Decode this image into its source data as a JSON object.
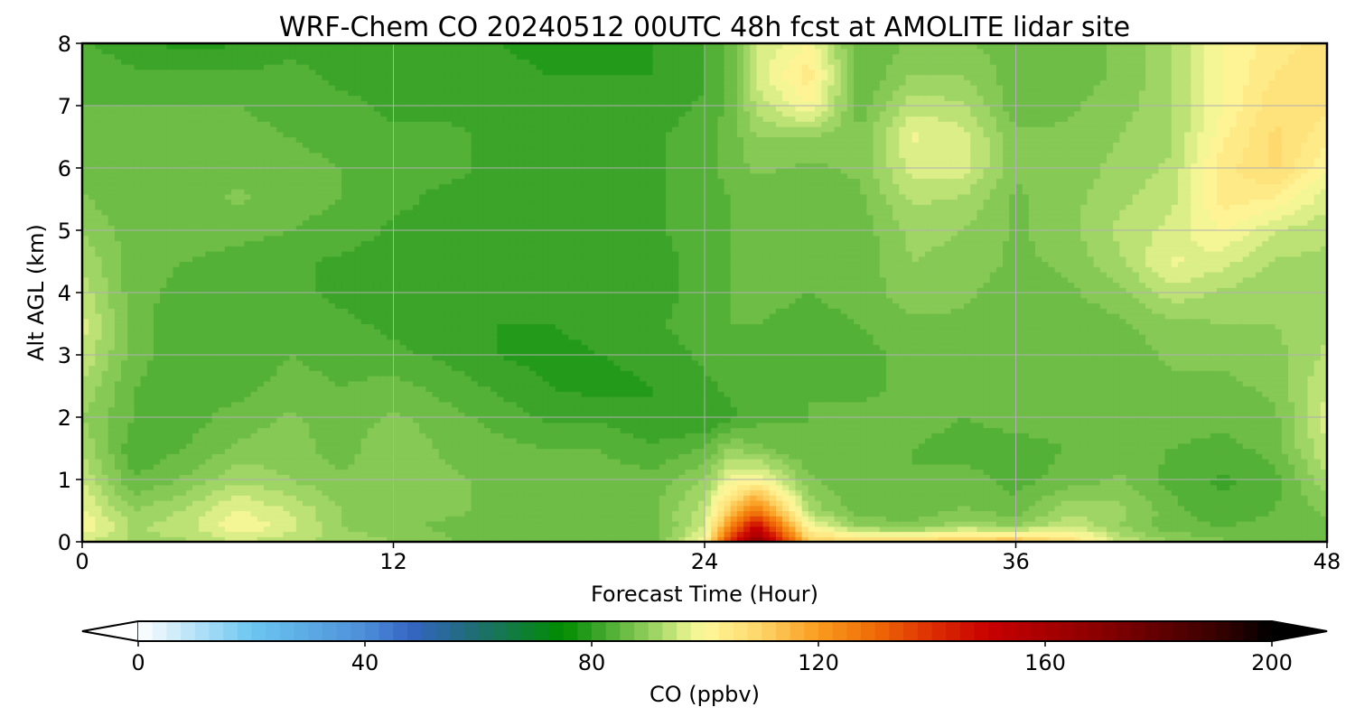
{
  "chart_data": {
    "type": "heatmap",
    "title": "WRF-Chem CO  20240512 00UTC 48h fcst at AMOLITE lidar site",
    "xlabel": "Forecast Time (Hour)",
    "ylabel": "Alt AGL (km)",
    "xlim": [
      0,
      48
    ],
    "ylim": [
      0,
      8
    ],
    "x_ticks": [
      0,
      12,
      24,
      36,
      48
    ],
    "y_ticks": [
      0,
      1,
      2,
      3,
      4,
      5,
      6,
      7,
      8
    ],
    "grid": true,
    "x": [
      0,
      2,
      4,
      6,
      8,
      10,
      12,
      14,
      16,
      18,
      20,
      22,
      24,
      25,
      26,
      28,
      30,
      32,
      34,
      36,
      38,
      40,
      42,
      44,
      46,
      48
    ],
    "y": [
      0,
      0.25,
      0.5,
      1,
      1.5,
      2,
      2.5,
      3,
      3.5,
      4,
      4.5,
      5,
      5.5,
      6,
      6.5,
      7,
      7.5,
      8
    ],
    "values": [
      [
        95,
        92,
        92,
        95,
        93,
        92,
        90,
        88,
        86,
        85,
        85,
        86,
        100,
        140,
        170,
        112,
        108,
        110,
        112,
        115,
        108,
        95,
        90,
        88,
        87,
        86
      ],
      [
        100,
        92,
        94,
        100,
        96,
        90,
        88,
        87,
        86,
        86,
        85,
        86,
        95,
        125,
        150,
        100,
        90,
        88,
        92,
        90,
        95,
        90,
        86,
        85,
        86,
        87
      ],
      [
        98,
        90,
        93,
        98,
        95,
        90,
        89,
        88,
        87,
        86,
        86,
        87,
        94,
        112,
        128,
        92,
        86,
        86,
        88,
        86,
        92,
        91,
        86,
        83,
        85,
        88
      ],
      [
        95,
        85,
        88,
        92,
        90,
        88,
        89,
        88,
        87,
        86,
        86,
        86,
        90,
        98,
        100,
        88,
        85,
        85,
        86,
        84,
        86,
        88,
        84,
        82,
        84,
        92
      ],
      [
        92,
        83,
        85,
        88,
        89,
        86,
        90,
        87,
        86,
        85,
        85,
        83,
        85,
        90,
        88,
        85,
        86,
        85,
        84,
        84,
        85,
        86,
        85,
        84,
        86,
        95
      ],
      [
        90,
        85,
        84,
        86,
        88,
        86,
        88,
        86,
        84,
        82,
        82,
        80,
        80,
        82,
        84,
        85,
        86,
        86,
        85,
        86,
        86,
        86,
        86,
        86,
        87,
        96
      ],
      [
        92,
        85,
        84,
        84,
        86,
        85,
        86,
        84,
        82,
        80,
        79,
        80,
        82,
        83,
        84,
        85,
        84,
        86,
        86,
        86,
        85,
        86,
        87,
        87,
        88,
        95
      ],
      [
        95,
        86,
        83,
        83,
        85,
        84,
        83,
        82,
        80,
        79,
        80,
        81,
        83,
        84,
        85,
        84,
        84,
        86,
        86,
        85,
        85,
        86,
        88,
        88,
        89,
        93
      ],
      [
        96,
        86,
        83,
        83,
        84,
        83,
        82,
        81,
        80,
        80,
        81,
        82,
        84,
        85,
        85,
        84,
        85,
        87,
        87,
        86,
        86,
        87,
        89,
        90,
        90,
        92
      ],
      [
        94,
        86,
        84,
        83,
        83,
        82,
        81,
        81,
        81,
        80,
        80,
        81,
        84,
        85,
        86,
        85,
        86,
        89,
        88,
        86,
        87,
        89,
        94,
        92,
        90,
        91
      ],
      [
        92,
        86,
        85,
        84,
        83,
        82,
        81,
        81,
        82,
        80,
        80,
        81,
        84,
        85,
        86,
        85,
        86,
        90,
        89,
        87,
        88,
        92,
        98,
        96,
        92,
        92
      ],
      [
        90,
        86,
        86,
        86,
        85,
        84,
        82,
        82,
        82,
        81,
        81,
        82,
        84,
        85,
        86,
        85,
        86,
        91,
        90,
        87,
        89,
        93,
        96,
        100,
        95,
        93
      ],
      [
        88,
        85,
        86,
        88,
        86,
        85,
        83,
        82,
        82,
        81,
        81,
        82,
        84,
        85,
        86,
        85,
        87,
        93,
        92,
        87,
        89,
        92,
        94,
        104,
        102,
        96
      ],
      [
        86,
        85,
        86,
        87,
        86,
        85,
        83,
        83,
        82,
        81,
        81,
        82,
        84,
        86,
        88,
        87,
        88,
        96,
        96,
        88,
        88,
        91,
        93,
        104,
        108,
        100
      ],
      [
        85,
        85,
        86,
        86,
        85,
        84,
        83,
        83,
        82,
        81,
        81,
        82,
        84,
        86,
        90,
        90,
        88,
        98,
        96,
        88,
        88,
        90,
        92,
        102,
        108,
        103
      ],
      [
        85,
        85,
        85,
        85,
        84,
        83,
        82,
        82,
        82,
        81,
        80,
        81,
        83,
        86,
        93,
        100,
        86,
        94,
        93,
        86,
        87,
        89,
        92,
        100,
        107,
        106
      ],
      [
        84,
        83,
        83,
        83,
        83,
        82,
        82,
        81,
        81,
        80,
        80,
        80,
        82,
        86,
        96,
        104,
        85,
        90,
        90,
        86,
        86,
        88,
        92,
        100,
        105,
        107
      ],
      [
        83,
        81,
        79,
        80,
        82,
        82,
        82,
        80,
        80,
        79,
        79,
        80,
        82,
        86,
        95,
        100,
        85,
        88,
        88,
        86,
        86,
        88,
        92,
        100,
        104,
        106
      ]
    ],
    "colorbar": {
      "label": "CO  (ppbv)",
      "min": 0,
      "max": 200,
      "step": 2.5,
      "extend": "both",
      "ticks": [
        0,
        40,
        80,
        120,
        160,
        200
      ],
      "orientation": "horizontal",
      "stops": [
        [
          0,
          "#ffffff"
        ],
        [
          20,
          "#6cc6f0"
        ],
        [
          40,
          "#4d8fd8"
        ],
        [
          48,
          "#3565c5"
        ],
        [
          60,
          "#1e6e6e"
        ],
        [
          75,
          "#008c00"
        ],
        [
          80,
          "#2e9e22"
        ],
        [
          86,
          "#6abc44"
        ],
        [
          92,
          "#a6d868"
        ],
        [
          97,
          "#e4f28e"
        ],
        [
          100,
          "#fff99c"
        ],
        [
          110,
          "#fdd467"
        ],
        [
          120,
          "#f99c1e"
        ],
        [
          130,
          "#ef6a06"
        ],
        [
          140,
          "#dd2e02"
        ],
        [
          150,
          "#c80000"
        ],
        [
          170,
          "#880000"
        ],
        [
          190,
          "#3a0000"
        ],
        [
          200,
          "#000000"
        ]
      ]
    }
  }
}
